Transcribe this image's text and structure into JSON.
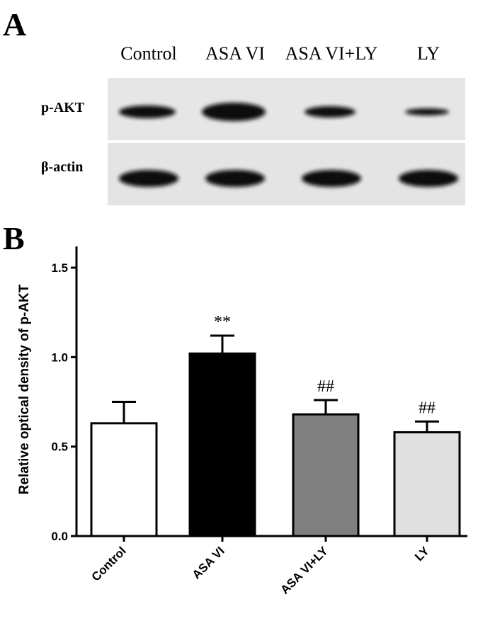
{
  "panels": [
    "A",
    "B"
  ],
  "blot": {
    "lanes": [
      "Control",
      "ASA VI",
      "ASA VI+LY",
      "LY"
    ],
    "rows": [
      "p-AKT",
      "β-actin"
    ]
  },
  "chart_data": {
    "type": "bar",
    "y_label": "Relative optical density of p-AKT",
    "categories": [
      "Control",
      "ASA VI",
      "ASA VI+LY",
      "LY"
    ],
    "values": [
      0.63,
      1.02,
      0.68,
      0.58
    ],
    "errors": [
      0.12,
      0.1,
      0.08,
      0.06
    ],
    "annotations": [
      null,
      "**",
      "##",
      "##"
    ],
    "colors": [
      "#ffffff",
      "#000000",
      "#808080",
      "#e0e0e0"
    ],
    "ylim": [
      0,
      1.5
    ],
    "yticks": [
      {
        "value": 0,
        "label": "0.0"
      },
      {
        "value": 0.5,
        "label": "0.5"
      },
      {
        "value": 1,
        "label": "1.0"
      },
      {
        "value": 1.5,
        "label": "1.5"
      }
    ]
  }
}
